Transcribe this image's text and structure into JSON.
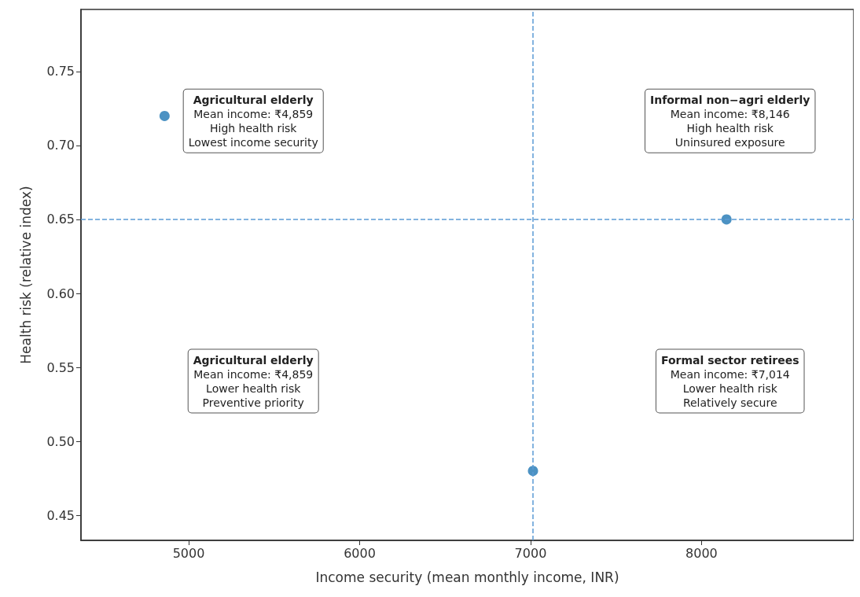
{
  "chart_data": {
    "type": "scatter",
    "xlabel": "Income security (mean monthly income, INR)",
    "ylabel": "Health risk (relative index)",
    "x": [
      4859,
      8146,
      7014
    ],
    "values": [
      0.72,
      0.65,
      0.48
    ],
    "color": "#1f77b4",
    "marker": "circle",
    "xlim": [
      4370,
      8890
    ],
    "xticks": [
      5000,
      6000,
      7000,
      8000
    ],
    "ylim": [
      0.433,
      0.792
    ],
    "yticks": [
      0.45,
      {
        "value": 0.5,
        "label": "0.50"
      },
      0.55,
      {
        "value": 0.6,
        "label": "0.60"
      },
      0.65,
      {
        "value": 0.7,
        "label": "0.70"
      },
      0.75
    ],
    "grid": false,
    "ref_lines": [
      {
        "axis": "x",
        "value": 7014,
        "color": "#5b9bd5",
        "line_style": "dashed"
      },
      {
        "axis": "y",
        "value": 0.65,
        "color": "#5b9bd5",
        "line_style": "dashed"
      }
    ],
    "annotations": [
      "Agricultural elderly\nMean income: ₹4,859\nHigh health risk\nLowest income security",
      "Informal non−agri elderly\nMean income: ₹8,146\nHigh health risk\nUninsured exposure",
      "Agricultural elderly\nMean income: ₹4,859\nLower health risk\nPreventive priority",
      "Formal sector retirees\nMean income: ₹7,014\nLower health risk\nRelatively secure"
    ]
  }
}
